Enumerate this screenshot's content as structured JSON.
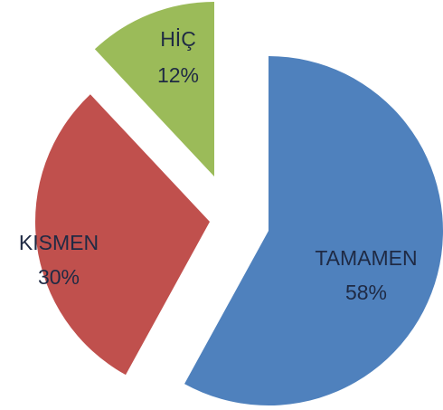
{
  "chart_data": {
    "type": "pie",
    "categories": [
      "TAMAMEN",
      "KISMEN",
      "HİÇ"
    ],
    "values": [
      58,
      30,
      12
    ],
    "value_labels": [
      "58%",
      "30%",
      "12%"
    ],
    "colors": [
      "#4f81bd",
      "#c0504d",
      "#9bbb59"
    ],
    "exploded": true
  }
}
